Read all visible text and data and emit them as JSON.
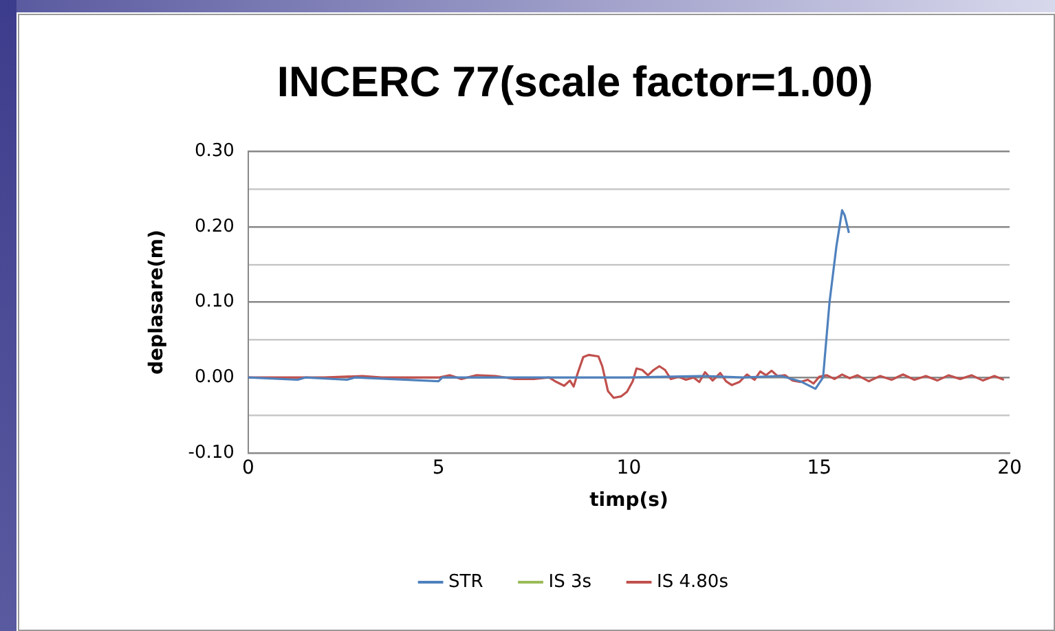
{
  "chart_data": {
    "type": "line",
    "title": "INCERC 77(scale factor=1.00)",
    "xlabel": "timp(s)",
    "ylabel": "deplasare(m)",
    "xlim": [
      0,
      20
    ],
    "xticks": [
      0,
      5,
      10,
      15,
      20
    ],
    "ylim": [
      -0.1,
      0.3
    ],
    "yticks": [
      {
        "value": -0.1,
        "label": "-0.10"
      },
      {
        "value": -0.05,
        "label": null
      },
      {
        "value": 0,
        "label": "0.00"
      },
      {
        "value": 0.05,
        "label": null
      },
      {
        "value": 0.1,
        "label": "0.10"
      },
      {
        "value": 0.15,
        "label": null
      },
      {
        "value": 0.2,
        "label": "0.20"
      },
      {
        "value": 0.25,
        "label": null
      },
      {
        "value": 0.3,
        "label": "0.30"
      }
    ],
    "grid": "y",
    "legend": "bottom",
    "marker": "none",
    "line_style": "solid",
    "series": [
      {
        "name": "STR",
        "color": "#4f81bd",
        "x": [
          0,
          1.3,
          1.5,
          2.6,
          2.8,
          5,
          5.1,
          8,
          10,
          12,
          13,
          14,
          14.5,
          14.9,
          15.1,
          15.27,
          15.45,
          15.6,
          15.67,
          15.78
        ],
        "values": [
          0,
          -0.003,
          0,
          -0.003,
          0,
          -0.005,
          0,
          0,
          0,
          0.002,
          0,
          0.002,
          -0.005,
          -0.015,
          0,
          0.1,
          0.174,
          0.222,
          0.215,
          0.192
        ]
      },
      {
        "name": "IS 3s",
        "color": "#9bbb59"
      },
      {
        "name": "IS 4.80s",
        "color": "#c0504d",
        "x": [
          0,
          1,
          2,
          3,
          3.5,
          4,
          5,
          5.3,
          5.6,
          6,
          6.5,
          7,
          7.5,
          7.9,
          8.1,
          8.3,
          8.45,
          8.55,
          8.65,
          8.8,
          8.95,
          9.2,
          9.3,
          9.45,
          9.6,
          9.8,
          9.95,
          10.1,
          10.2,
          10.35,
          10.5,
          10.65,
          10.8,
          10.95,
          11.1,
          11.3,
          11.5,
          11.7,
          11.85,
          12,
          12.2,
          12.4,
          12.55,
          12.7,
          12.9,
          13.1,
          13.3,
          13.45,
          13.6,
          13.75,
          13.9,
          14.1,
          14.3,
          14.5,
          14.7,
          14.85,
          15,
          15.2,
          15.4,
          15.6,
          15.8,
          16,
          16.3,
          16.6,
          16.9,
          17.2,
          17.5,
          17.8,
          18.1,
          18.4,
          18.7,
          19,
          19.3,
          19.6,
          19.85
        ],
        "values": [
          0,
          0,
          0,
          0.002,
          0,
          0,
          0,
          0.003,
          -0.002,
          0.003,
          0.002,
          -0.002,
          -0.002,
          0,
          -0.006,
          -0.011,
          -0.004,
          -0.012,
          0.005,
          0.027,
          0.03,
          0.028,
          0.015,
          -0.018,
          -0.027,
          -0.025,
          -0.019,
          -0.005,
          0.012,
          0.01,
          0.003,
          0.01,
          0.015,
          0.01,
          -0.002,
          0.001,
          -0.003,
          0,
          -0.006,
          0.007,
          -0.004,
          0.006,
          -0.005,
          -0.01,
          -0.006,
          0.004,
          -0.003,
          0.008,
          0.003,
          0.009,
          0.002,
          0.003,
          -0.004,
          -0.006,
          -0.003,
          -0.008,
          0.001,
          0.003,
          -0.002,
          0.004,
          -0.001,
          0.003,
          -0.005,
          0.002,
          -0.003,
          0.004,
          -0.003,
          0.002,
          -0.004,
          0.003,
          -0.002,
          0.003,
          -0.004,
          0.002,
          -0.003
        ]
      }
    ]
  }
}
